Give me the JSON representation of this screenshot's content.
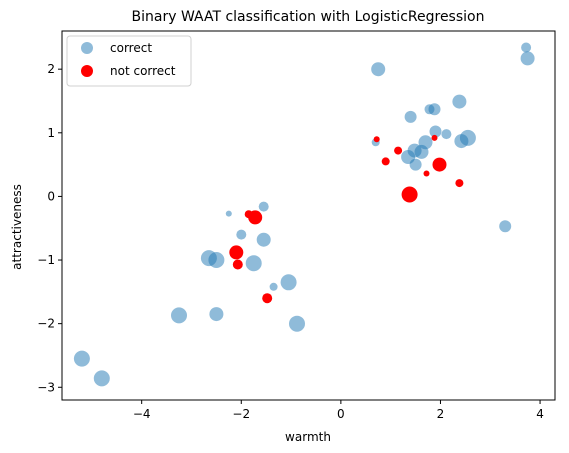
{
  "chart_data": {
    "type": "scatter",
    "title": "Binary WAAT classification with LogisticRegression",
    "xlabel": "warmth",
    "ylabel": "attractiveness",
    "xlim": [
      -5.6,
      4.3
    ],
    "ylim": [
      -3.2,
      2.6
    ],
    "xticks": [
      -4,
      -2,
      0,
      2,
      4
    ],
    "yticks": [
      -3,
      -2,
      -1,
      0,
      1,
      2
    ],
    "grid": false,
    "legend_placement": "top-left",
    "series": [
      {
        "name": "correct",
        "color": "#1f77b4",
        "alpha": 0.5,
        "points": [
          {
            "x": -5.2,
            "y": -2.55,
            "s": 8
          },
          {
            "x": -4.8,
            "y": -2.86,
            "s": 8
          },
          {
            "x": -3.25,
            "y": -1.87,
            "s": 8
          },
          {
            "x": -2.65,
            "y": -0.97,
            "s": 8
          },
          {
            "x": -2.5,
            "y": -1.0,
            "s": 8
          },
          {
            "x": -2.5,
            "y": -1.85,
            "s": 7
          },
          {
            "x": -2.25,
            "y": -0.27,
            "s": 3
          },
          {
            "x": -2.0,
            "y": -0.6,
            "s": 5
          },
          {
            "x": -1.75,
            "y": -1.05,
            "s": 8
          },
          {
            "x": -1.55,
            "y": -0.16,
            "s": 5
          },
          {
            "x": -1.55,
            "y": -0.68,
            "s": 7
          },
          {
            "x": -1.35,
            "y": -1.42,
            "s": 4
          },
          {
            "x": -1.05,
            "y": -1.35,
            "s": 8
          },
          {
            "x": -0.88,
            "y": -2.0,
            "s": 8
          },
          {
            "x": 0.7,
            "y": 0.85,
            "s": 4
          },
          {
            "x": 0.75,
            "y": 2.0,
            "s": 7
          },
          {
            "x": 1.35,
            "y": 0.62,
            "s": 7
          },
          {
            "x": 1.4,
            "y": 1.25,
            "s": 6
          },
          {
            "x": 1.48,
            "y": 0.72,
            "s": 7
          },
          {
            "x": 1.5,
            "y": 0.5,
            "s": 6
          },
          {
            "x": 1.62,
            "y": 0.7,
            "s": 7
          },
          {
            "x": 1.7,
            "y": 0.85,
            "s": 7
          },
          {
            "x": 1.78,
            "y": 1.37,
            "s": 5
          },
          {
            "x": 1.88,
            "y": 1.37,
            "s": 6
          },
          {
            "x": 1.9,
            "y": 1.02,
            "s": 6
          },
          {
            "x": 2.12,
            "y": 0.98,
            "s": 5
          },
          {
            "x": 2.38,
            "y": 1.49,
            "s": 7
          },
          {
            "x": 2.42,
            "y": 0.87,
            "s": 7
          },
          {
            "x": 2.55,
            "y": 0.92,
            "s": 8
          },
          {
            "x": 3.3,
            "y": -0.47,
            "s": 6
          },
          {
            "x": 3.72,
            "y": 2.34,
            "s": 5
          },
          {
            "x": 3.75,
            "y": 2.17,
            "s": 7
          }
        ]
      },
      {
        "name": "not correct",
        "color": "#ff0000",
        "alpha": 1.0,
        "points": [
          {
            "x": -2.1,
            "y": -0.88,
            "s": 7
          },
          {
            "x": -2.07,
            "y": -1.07,
            "s": 5
          },
          {
            "x": -1.85,
            "y": -0.28,
            "s": 4
          },
          {
            "x": -1.72,
            "y": -0.33,
            "s": 7
          },
          {
            "x": -1.48,
            "y": -1.6,
            "s": 5
          },
          {
            "x": 0.72,
            "y": 0.9,
            "s": 3
          },
          {
            "x": 0.9,
            "y": 0.55,
            "s": 4
          },
          {
            "x": 1.15,
            "y": 0.72,
            "s": 4
          },
          {
            "x": 1.38,
            "y": 0.03,
            "s": 8
          },
          {
            "x": 1.72,
            "y": 0.36,
            "s": 3
          },
          {
            "x": 1.88,
            "y": 0.92,
            "s": 3
          },
          {
            "x": 1.98,
            "y": 0.5,
            "s": 7
          },
          {
            "x": 2.38,
            "y": 0.21,
            "s": 4
          }
        ]
      }
    ]
  }
}
